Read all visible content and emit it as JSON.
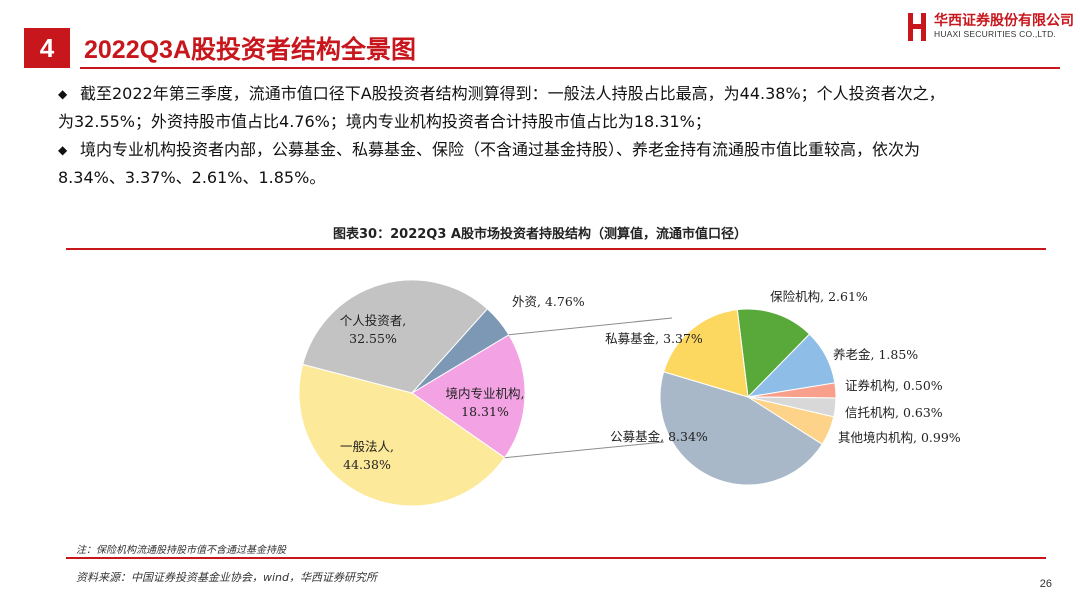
{
  "header": {
    "section_number": "4",
    "title": "2022Q3A股投资者结构全景图",
    "logo_cn": "华西证券股份有限公司",
    "logo_en": "HUAXI SECURITIES CO.,LTD."
  },
  "bullets": [
    {
      "icon": "◆",
      "line1": "截至2022年第三季度，流通市值口径下A股投资者结构测算得到：一般法人持股占比最高，为44.38%；个人投资者次之，",
      "line2": "为32.55%；外资持股市值占比4.76%；境内专业机构投资者合计持股市值占比为18.31%；"
    },
    {
      "icon": "◆",
      "line1": "境内专业机构投资者内部，公募基金、私募基金、保险（不含通过基金持股）、养老金持有流通股市值比重较高，依次为",
      "line2": "8.34%、3.37%、2.61%、1.85%。"
    }
  ],
  "chart_data": {
    "type": "pie",
    "title": "图表30：2022Q3 A股市场投资者持股结构（测算值，流通市值口径）",
    "main_pie": {
      "slices": [
        {
          "name": "一般法人",
          "value": 44.38,
          "label_line1": "一般法人,",
          "label_line2": "44.38%",
          "color": "#fde99a"
        },
        {
          "name": "个人投资者",
          "value": 32.55,
          "label_line1": "个人投资者,",
          "label_line2": "32.55%",
          "color": "#c3c3c3"
        },
        {
          "name": "外资",
          "value": 4.76,
          "label_line1": "外资, 4.76%",
          "label_line2": "",
          "color": "#7c98b5"
        },
        {
          "name": "境内专业机构",
          "value": 18.31,
          "label_line1": "境内专业机构,",
          "label_line2": "18.31%",
          "color": "#f3a2e3"
        }
      ]
    },
    "breakdown_pie": {
      "of": "境内专业机构",
      "slices": [
        {
          "name": "公募基金",
          "value": 8.34,
          "label": "公募基金, 8.34%",
          "color": "#a8b8c8"
        },
        {
          "name": "私募基金",
          "value": 3.37,
          "label": "私募基金, 3.37%",
          "color": "#fdd860"
        },
        {
          "name": "保险机构",
          "value": 2.61,
          "label": "保险机构, 2.61%",
          "color": "#58a83a"
        },
        {
          "name": "养老金",
          "value": 1.85,
          "label": "养老金, 1.85%",
          "color": "#8ebee8"
        },
        {
          "name": "证券机构",
          "value": 0.5,
          "label": "证券机构, 0.50%",
          "color": "#f8a08c"
        },
        {
          "name": "信托机构",
          "value": 0.63,
          "label": "信托机构, 0.63%",
          "color": "#d8d8d8"
        },
        {
          "name": "其他境内机构",
          "value": 0.99,
          "label": "其他境内机构, 0.99%",
          "color": "#fdd38a"
        }
      ]
    }
  },
  "footer": {
    "note": "注：保险机构流通股持股市值不含通过基金持股",
    "source": "资料来源：中国证券投资基金业协会，wind，华西证券研究所",
    "page_number": "26"
  },
  "colors": {
    "accent": "#c8161d"
  }
}
